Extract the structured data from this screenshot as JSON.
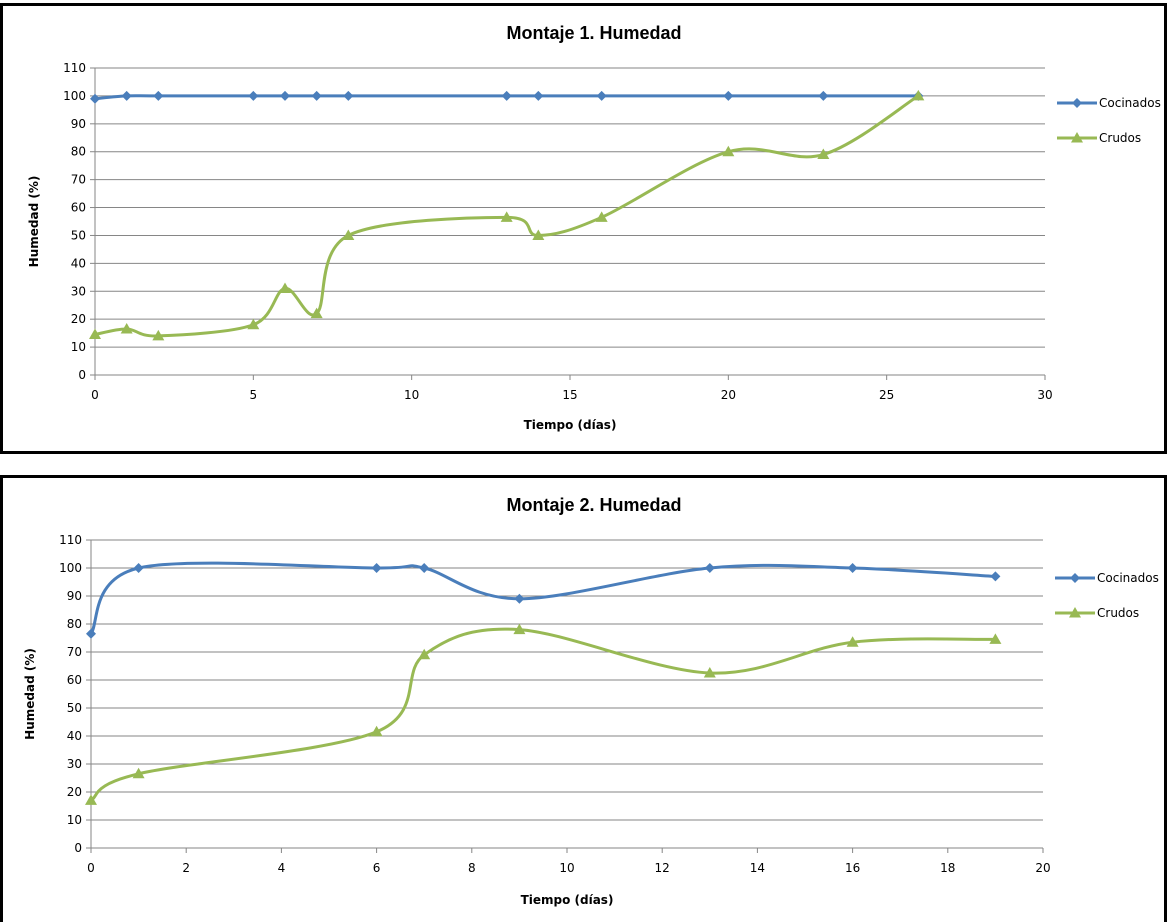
{
  "colors": {
    "cocinados": "#4a7ebb",
    "crudos": "#98b954",
    "grid": "#868686",
    "axis": "#868686"
  },
  "chart_data": [
    {
      "type": "line",
      "title": "Montaje 1. Humedad",
      "xlabel": "Tiempo (días)",
      "ylabel": "Humedad (%)",
      "xlim": [
        0,
        30
      ],
      "ylim": [
        0,
        110
      ],
      "xticks": [
        0,
        5,
        10,
        15,
        20,
        25,
        30
      ],
      "yticks": [
        0,
        10,
        20,
        30,
        40,
        50,
        60,
        70,
        80,
        90,
        100,
        110
      ],
      "grid": true,
      "legend_position": "right",
      "smooth": true,
      "series": [
        {
          "name": "Cocinados",
          "marker": "diamond",
          "x": [
            0,
            1,
            2,
            5,
            6,
            7,
            8,
            13,
            14,
            16,
            20,
            23,
            26
          ],
          "y": [
            99,
            100,
            100,
            100,
            100,
            100,
            100,
            100,
            100,
            100,
            100,
            100,
            100
          ]
        },
        {
          "name": "Crudos",
          "marker": "triangle",
          "x": [
            0,
            1,
            2,
            5,
            6,
            7,
            8,
            13,
            14,
            16,
            20,
            23,
            26
          ],
          "y": [
            14.5,
            16.5,
            14,
            18,
            31,
            22,
            50,
            56.5,
            50,
            56.5,
            80,
            79,
            100
          ]
        }
      ]
    },
    {
      "type": "line",
      "title": "Montaje 2. Humedad",
      "xlabel": "Tiempo (días)",
      "ylabel": "Humedad (%)",
      "xlim": [
        0,
        20
      ],
      "ylim": [
        0,
        110
      ],
      "xticks": [
        0,
        2,
        4,
        6,
        8,
        10,
        12,
        14,
        16,
        18,
        20
      ],
      "yticks": [
        0,
        10,
        20,
        30,
        40,
        50,
        60,
        70,
        80,
        90,
        100,
        110
      ],
      "grid": true,
      "legend_position": "right",
      "smooth": true,
      "series": [
        {
          "name": "Cocinados",
          "marker": "diamond",
          "x": [
            0,
            1,
            6,
            7,
            9,
            13,
            16,
            19
          ],
          "y": [
            76.5,
            100,
            100,
            100,
            89,
            100,
            100,
            97
          ]
        },
        {
          "name": "Crudos",
          "marker": "triangle",
          "x": [
            0,
            1,
            6,
            7,
            9,
            13,
            16,
            19
          ],
          "y": [
            17,
            26.5,
            41.5,
            69,
            78,
            62.5,
            73.5,
            74.5
          ]
        }
      ]
    }
  ]
}
